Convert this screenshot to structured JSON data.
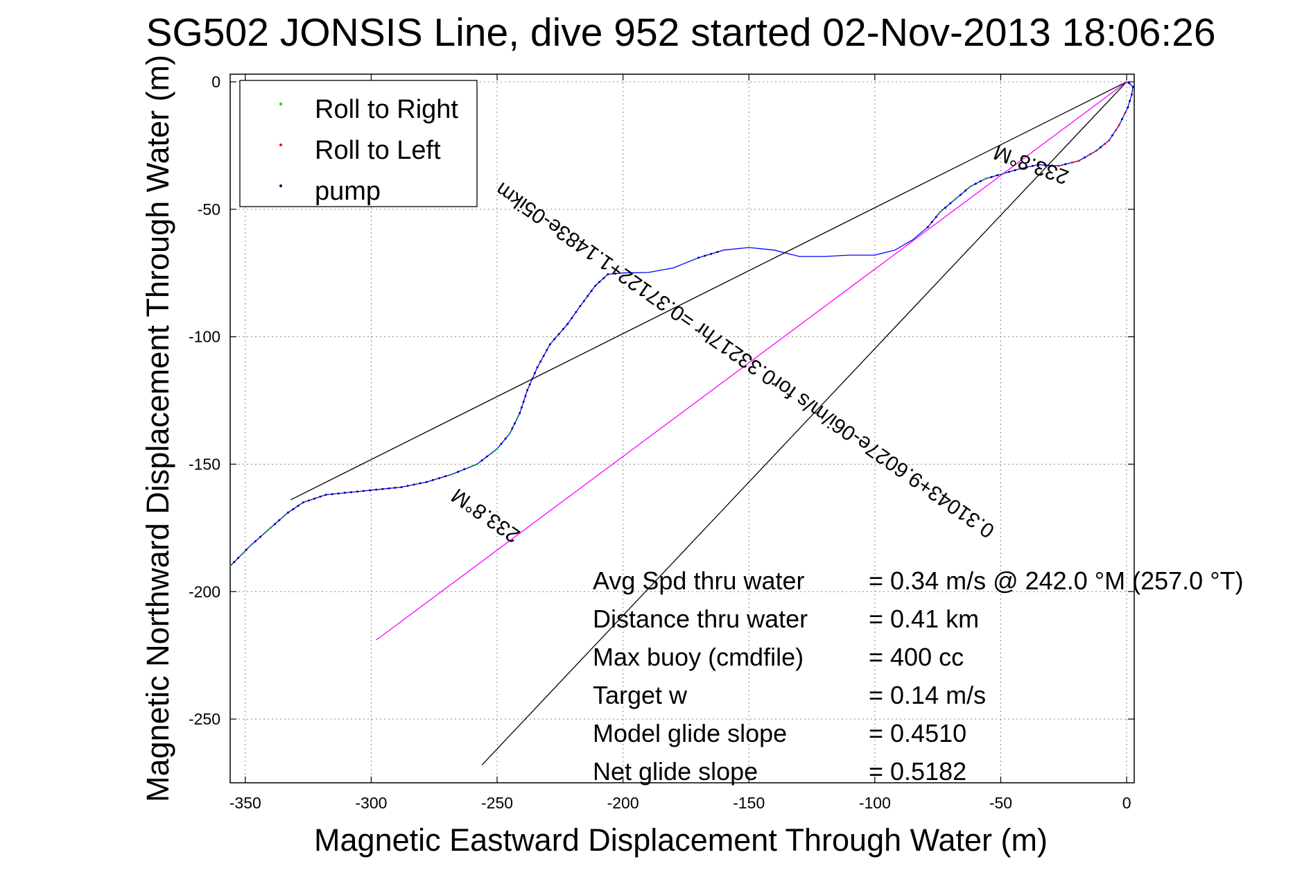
{
  "chart_data": {
    "type": "line",
    "title": "SG502 JONSIS Line, dive 952 started 02-Nov-2013 18:06:26",
    "xlabel": "Magnetic Eastward Displacement Through Water (m)",
    "ylabel": "Magnetic Northward Displacement Through Water (m)",
    "xlim": [
      -356,
      3
    ],
    "ylim": [
      -275,
      3
    ],
    "xticks": [
      -350,
      -300,
      -250,
      -200,
      -150,
      -100,
      -50,
      0
    ],
    "yticks": [
      0,
      -50,
      -100,
      -150,
      -200,
      -250
    ],
    "grid": true,
    "legend_position": "top-left",
    "legend": [
      {
        "label": "Roll to Right",
        "color": "#00cc00"
      },
      {
        "label": "Roll to Left",
        "color": "#ff0000"
      },
      {
        "label": "pump",
        "color": "#000066"
      }
    ],
    "series": [
      {
        "name": "track",
        "color": "#0000ff",
        "points": [
          [
            -356,
            -190
          ],
          [
            -348,
            -182
          ],
          [
            -340,
            -175
          ],
          [
            -333,
            -169
          ],
          [
            -327,
            -165
          ],
          [
            -318,
            -162
          ],
          [
            -308,
            -161
          ],
          [
            -298,
            -160
          ],
          [
            -288,
            -159
          ],
          [
            -278,
            -157
          ],
          [
            -268,
            -154
          ],
          [
            -258,
            -150
          ],
          [
            -250,
            -144
          ],
          [
            -245,
            -138
          ],
          [
            -241,
            -130
          ],
          [
            -238,
            -121
          ],
          [
            -234,
            -112
          ],
          [
            -229,
            -103
          ],
          [
            -222,
            -95
          ],
          [
            -217,
            -88
          ],
          [
            -211,
            -80
          ],
          [
            -206,
            -75.5
          ],
          [
            -200,
            -75
          ],
          [
            -190,
            -74.8
          ],
          [
            -180,
            -73
          ],
          [
            -170,
            -69
          ],
          [
            -160,
            -66
          ],
          [
            -150,
            -65
          ],
          [
            -140,
            -66
          ],
          [
            -130,
            -68.5
          ],
          [
            -120,
            -68.5
          ],
          [
            -110,
            -68
          ],
          [
            -100,
            -68
          ],
          [
            -92,
            -66
          ],
          [
            -85,
            -62
          ],
          [
            -79,
            -57
          ],
          [
            -74,
            -51
          ],
          [
            -68,
            -46
          ],
          [
            -62,
            -41
          ],
          [
            -56,
            -38
          ],
          [
            -49,
            -36
          ],
          [
            -42,
            -34
          ],
          [
            -35,
            -32.5
          ],
          [
            -27,
            -33
          ],
          [
            -19,
            -31
          ],
          [
            -12,
            -27
          ],
          [
            -7,
            -23
          ],
          [
            -3,
            -17
          ],
          [
            0.5,
            -10
          ],
          [
            2,
            -5
          ],
          [
            2.5,
            -2
          ],
          [
            1,
            -0.5
          ],
          [
            0,
            0
          ]
        ]
      },
      {
        "name": "heading-line-1",
        "color": "#000000",
        "points": [
          [
            -332,
            -164
          ],
          [
            0,
            0
          ]
        ]
      },
      {
        "name": "heading-line-2",
        "color": "#000000",
        "points": [
          [
            -256,
            -268
          ],
          [
            0,
            0
          ]
        ]
      },
      {
        "name": "average-track",
        "color": "#ff00ff",
        "points": [
          [
            -298,
            -219
          ],
          [
            0,
            0
          ]
        ]
      }
    ],
    "annotations": [
      {
        "text": "233.8°M",
        "x": -37,
        "y": -30,
        "rotation": 200
      },
      {
        "text": "0.31043+9.6027e-06i/m/s for0.33217hr =0.37122+1.1483e-05ikm",
        "x": -150,
        "y": -107,
        "rotation": 215
      },
      {
        "text": "233.8°M",
        "x": -253,
        "y": -168,
        "rotation": 215
      }
    ],
    "stats": [
      {
        "label": "Avg Spd thru water",
        "value": "=  0.34 m/s @ 242.0 °M (257.0 °T)"
      },
      {
        "label": "Distance thru water",
        "value": "=  0.41 km"
      },
      {
        "label": "Max buoy (cmdfile)",
        "value": "= 400 cc"
      },
      {
        "label": "Target w",
        "value": "= 0.14 m/s"
      },
      {
        "label": "Model glide slope",
        "value": "= 0.4510"
      },
      {
        "label": "Net glide slope",
        "value": "= 0.5182"
      }
    ]
  }
}
